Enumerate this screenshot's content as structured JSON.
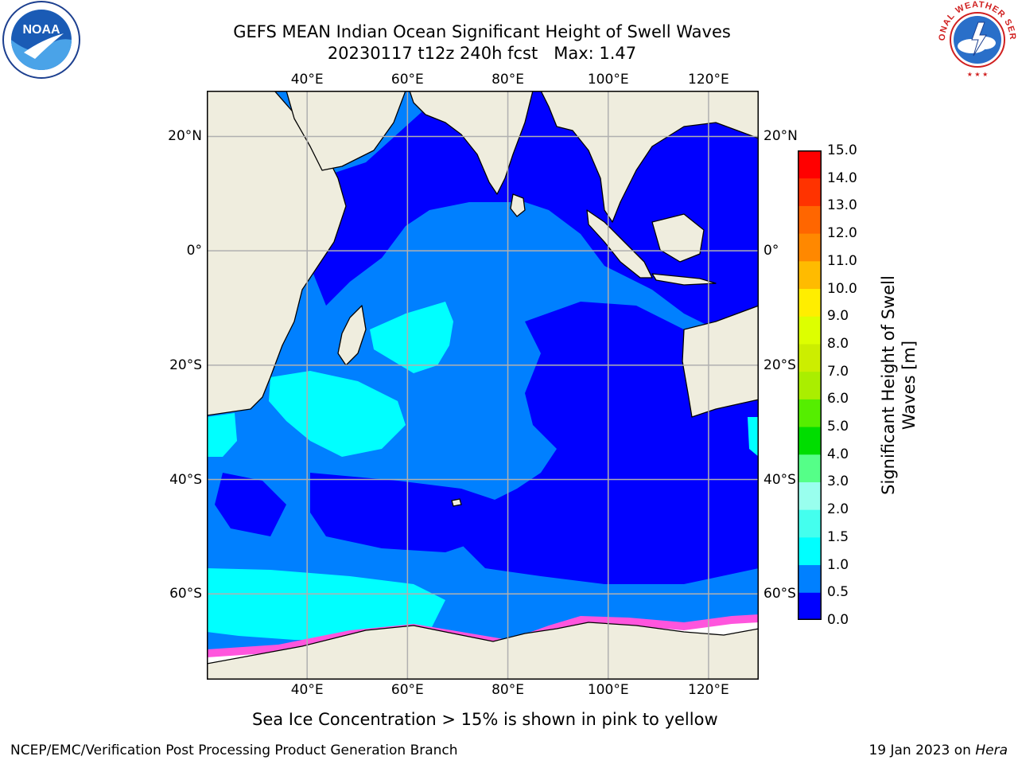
{
  "header": {
    "title_line1": "GEFS MEAN Indian Ocean Significant Height of Swell Waves",
    "title_line2": "20230117 t12z 240h fcst   Max: 1.47"
  },
  "logos": {
    "left": {
      "icon": "noaa-logo",
      "text": "NOAA"
    },
    "right": {
      "icon": "nws-logo",
      "text": "NATIONAL WEATHER SERVICE"
    }
  },
  "map": {
    "projection": "cylindrical",
    "lon_range": [
      20,
      130
    ],
    "lat_range": [
      -75,
      28
    ],
    "lon_ticks": [
      {
        "value": 40,
        "label": "40°E"
      },
      {
        "value": 60,
        "label": "60°E"
      },
      {
        "value": 80,
        "label": "80°E"
      },
      {
        "value": 100,
        "label": "100°E"
      },
      {
        "value": 120,
        "label": "120°E"
      }
    ],
    "lat_ticks": [
      {
        "value": 20,
        "label": "20°N"
      },
      {
        "value": 0,
        "label": "0°"
      },
      {
        "value": -20,
        "label": "20°S"
      },
      {
        "value": -40,
        "label": "40°S"
      },
      {
        "value": -60,
        "label": "60°S"
      }
    ],
    "gridlines": true,
    "colors": {
      "land": "#efedde",
      "coast": "#000000",
      "grid": "#b0b0b0",
      "sea_ice": "#ff55dd",
      "ice_inner": "#ffffff"
    }
  },
  "colorbar": {
    "label": "Significant Height of Swell\nWaves [m]",
    "levels": [
      "0.0",
      "0.5",
      "1.0",
      "1.5",
      "2.0",
      "3.0",
      "4.0",
      "5.0",
      "6.0",
      "7.0",
      "8.0",
      "9.0",
      "10.0",
      "11.0",
      "12.0",
      "13.0",
      "14.0",
      "15.0"
    ],
    "colors": [
      "#0000ff",
      "#0080ff",
      "#00ffff",
      "#44ffee",
      "#99ffee",
      "#55ff88",
      "#00dd00",
      "#55ee00",
      "#aaee00",
      "#ccee00",
      "#ddff00",
      "#ffee00",
      "#ffbb00",
      "#ff8800",
      "#ff6600",
      "#ff3300",
      "#ff0000"
    ]
  },
  "caption": "Sea Ice Concentration > 15% is shown in pink to yellow",
  "footer": {
    "left": "NCEP/EMC/Verification Post Processing Product Generation Branch",
    "right_prefix": "19 Jan 2023 on ",
    "right_machine": "Hera"
  }
}
